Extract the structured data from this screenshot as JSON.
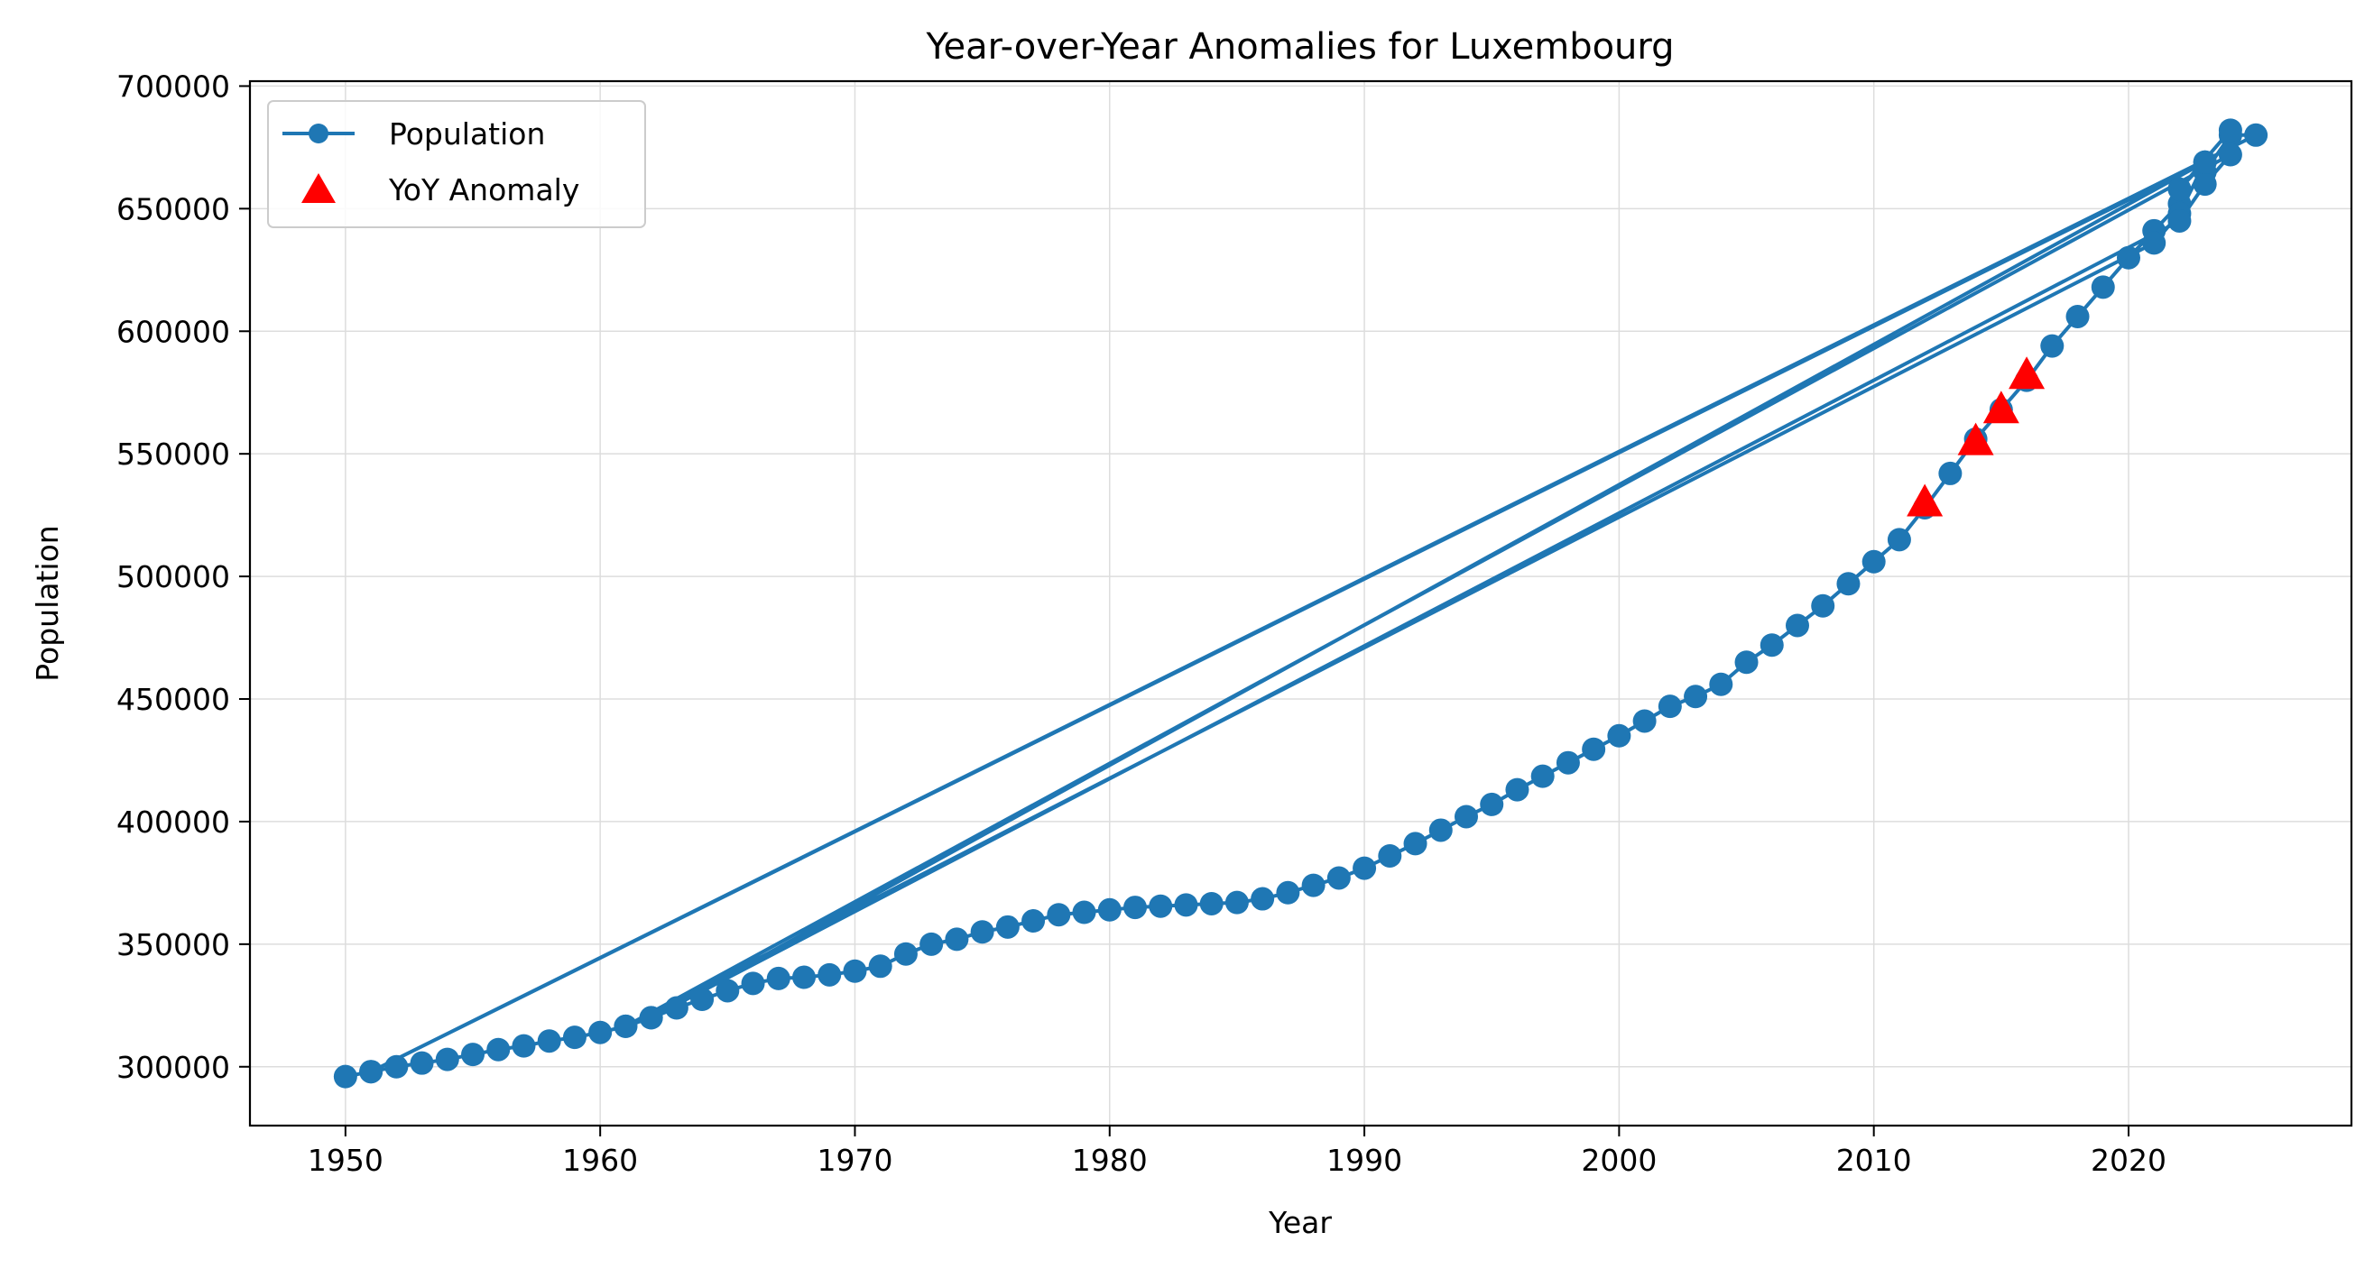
{
  "chart_data": {
    "type": "line",
    "title": "Year-over-Year Anomalies for Luxembourg",
    "xlabel": "Year",
    "ylabel": "Population",
    "xlim": [
      1946.25,
      2028.75
    ],
    "ylim": [
      276000,
      702000
    ],
    "x_ticks": [
      1950,
      1960,
      1970,
      1980,
      1990,
      2000,
      2010,
      2020
    ],
    "y_ticks": [
      300000,
      350000,
      400000,
      450000,
      500000,
      550000,
      600000,
      650000,
      700000
    ],
    "grid": true,
    "legend_position": "top-left",
    "colors": {
      "population": "#1f77b4",
      "anomaly": "#ff0000",
      "grid": "#dddddd"
    },
    "series": [
      {
        "name": "Population",
        "style": "line-with-circle-markers",
        "points": [
          [
            1950,
            296000
          ],
          [
            1951,
            298000
          ],
          [
            1952,
            300000
          ],
          [
            1953,
            301500
          ],
          [
            1954,
            303000
          ],
          [
            1955,
            305000
          ],
          [
            1956,
            307000
          ],
          [
            1957,
            308500
          ],
          [
            1958,
            310500
          ],
          [
            1959,
            312000
          ],
          [
            1960,
            314000
          ],
          [
            1961,
            316500
          ],
          [
            1962,
            320000
          ],
          [
            1963,
            324000
          ],
          [
            1964,
            327500
          ],
          [
            1965,
            331000
          ],
          [
            1966,
            334000
          ],
          [
            1967,
            336000
          ],
          [
            1968,
            336500
          ],
          [
            1969,
            337500
          ],
          [
            1970,
            339000
          ],
          [
            1971,
            341000
          ],
          [
            1972,
            346000
          ],
          [
            1973,
            350000
          ],
          [
            1974,
            352000
          ],
          [
            1975,
            355000
          ],
          [
            1976,
            357000
          ],
          [
            1977,
            359500
          ],
          [
            1978,
            362000
          ],
          [
            1979,
            363000
          ],
          [
            1980,
            364000
          ],
          [
            1981,
            365000
          ],
          [
            1982,
            365500
          ],
          [
            1983,
            366000
          ],
          [
            1984,
            366500
          ],
          [
            1985,
            367000
          ],
          [
            1986,
            368500
          ],
          [
            1987,
            371000
          ],
          [
            1988,
            374000
          ],
          [
            1989,
            377000
          ],
          [
            1990,
            381000
          ],
          [
            1991,
            386000
          ],
          [
            1992,
            391000
          ],
          [
            1993,
            396500
          ],
          [
            1994,
            402000
          ],
          [
            1995,
            407000
          ],
          [
            1996,
            413000
          ],
          [
            1997,
            418500
          ],
          [
            1998,
            424000
          ],
          [
            1999,
            429500
          ],
          [
            2000,
            435000
          ],
          [
            2001,
            441000
          ],
          [
            2002,
            447000
          ],
          [
            2003,
            451000
          ],
          [
            2004,
            456000
          ],
          [
            2005,
            465000
          ],
          [
            2006,
            472000
          ],
          [
            2007,
            480000
          ],
          [
            2008,
            488000
          ],
          [
            2009,
            497000
          ],
          [
            2010,
            506000
          ],
          [
            2011,
            515000
          ],
          [
            2012,
            528000
          ],
          [
            2013,
            542000
          ],
          [
            2014,
            556000
          ],
          [
            2015,
            568000
          ],
          [
            2016,
            580000
          ],
          [
            2017,
            594000
          ],
          [
            2018,
            606000
          ],
          [
            2019,
            618000
          ],
          [
            2020,
            630000
          ],
          [
            2021,
            641000
          ],
          [
            2022,
            652000
          ],
          [
            2023,
            665000
          ],
          [
            2024,
            680000
          ],
          [
            2025,
            680000
          ],
          [
            1951,
            298000
          ],
          [
            2023,
            669000
          ],
          [
            2022,
            648000
          ],
          [
            2021,
            636000
          ],
          [
            1961,
            316500
          ],
          [
            2024,
            672000
          ],
          [
            2023,
            660000
          ],
          [
            2022,
            645000
          ],
          [
            1962,
            320000
          ],
          [
            2023,
            669000
          ],
          [
            2022,
            658000
          ],
          [
            2024,
            682000
          ]
        ]
      },
      {
        "name": "YoY Anomaly",
        "style": "red-triangle-markers",
        "points": [
          [
            2012,
            530000
          ],
          [
            2014,
            555000
          ],
          [
            2015,
            568000
          ],
          [
            2016,
            582000
          ]
        ]
      }
    ]
  }
}
